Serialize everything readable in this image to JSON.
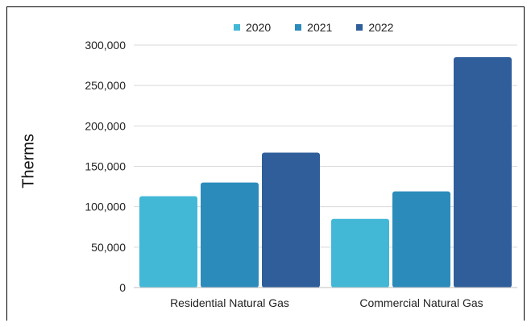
{
  "chart_data": {
    "type": "bar",
    "categories": [
      "Residential Natural Gas",
      "Commercial Natural Gas"
    ],
    "series": [
      {
        "name": "2020",
        "color": "#42b8d6",
        "values": [
          113000,
          85000
        ]
      },
      {
        "name": "2021",
        "color": "#2b8bbb",
        "values": [
          130000,
          119000
        ]
      },
      {
        "name": "2022",
        "color": "#2f5e9b",
        "values": [
          167000,
          285000
        ]
      }
    ],
    "ylabel": "Therms",
    "ylim": [
      0,
      300000
    ],
    "yticks": [
      0,
      50000,
      100000,
      150000,
      200000,
      250000,
      300000
    ],
    "ytick_labels": [
      "0",
      "50,000",
      "100,000",
      "150,000",
      "200,000",
      "250,000",
      "300,000"
    ],
    "grid": true,
    "legend_position": "top"
  }
}
